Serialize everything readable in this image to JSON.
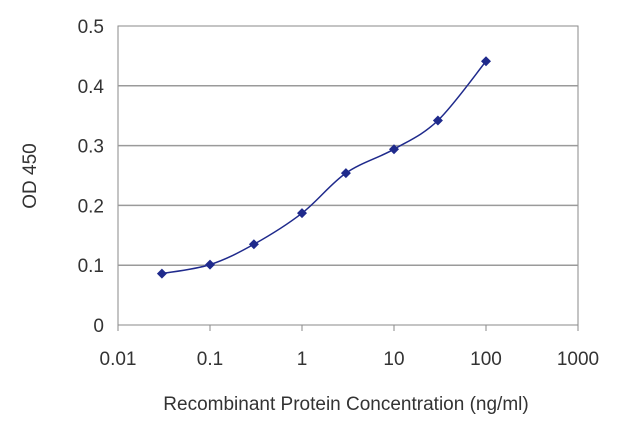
{
  "chart_data": {
    "type": "scatter",
    "title": "",
    "xlabel": "Recombinant Protein Concentration (ng/ml)",
    "ylabel": "OD 450",
    "x_scale": "log",
    "xlim": [
      0.01,
      1000
    ],
    "ylim": [
      0,
      0.5
    ],
    "x_ticks": [
      0.01,
      0.1,
      1,
      10,
      100,
      1000
    ],
    "x_tick_labels": [
      "0.01",
      "0.1",
      "1",
      "10",
      "100",
      "1000"
    ],
    "y_ticks": [
      0,
      0.1,
      0.2,
      0.3,
      0.4,
      0.5
    ],
    "y_tick_labels": [
      "0",
      "0.1",
      "0.2",
      "0.3",
      "0.4",
      "0.5"
    ],
    "grid": "horizontal",
    "legend": "none",
    "series": [
      {
        "x": [
          0.03,
          0.1,
          0.3,
          1,
          3,
          10,
          30,
          100
        ],
        "y": [
          0.086,
          0.101,
          0.135,
          0.187,
          0.254,
          0.294,
          0.342,
          0.441
        ]
      }
    ],
    "colors": {
      "series": "#1f2a8c",
      "grid": "#9a9a9a",
      "axes": "#8a8a8a",
      "text": "#333333"
    }
  }
}
